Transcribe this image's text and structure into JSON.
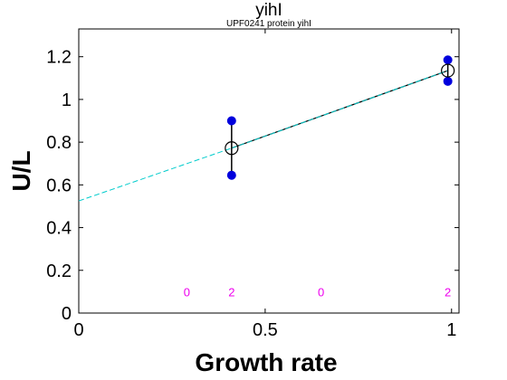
{
  "chart_data": {
    "type": "scatter",
    "title": "yihI",
    "subtitle": "UPF0241 protein yihI",
    "xlabel": "Growth rate",
    "ylabel": "U/L",
    "xlim": [
      0,
      1.02
    ],
    "ylim": [
      0,
      1.33
    ],
    "xticks": [
      0,
      0.5,
      1
    ],
    "xtick_labels": [
      "0",
      "0.5",
      "1"
    ],
    "yticks": [
      0,
      0.2,
      0.4,
      0.6,
      0.8,
      1.0,
      1.2
    ],
    "ytick_labels": [
      "0",
      "0.2",
      "0.4",
      "0.6",
      "0.8",
      "1",
      "1.2"
    ],
    "grid": false,
    "legend": "none",
    "points": {
      "x": [
        0.41,
        0.41,
        0.99,
        0.99
      ],
      "y": [
        0.9,
        0.645,
        1.185,
        1.085
      ],
      "color": "#0000dd"
    },
    "means": {
      "x": [
        0.41,
        0.99
      ],
      "y": [
        0.772,
        1.135
      ],
      "err_low": [
        0.645,
        1.085
      ],
      "err_high": [
        0.9,
        1.185
      ]
    },
    "fit_line": {
      "x": [
        0.41,
        0.99
      ],
      "y": [
        0.772,
        1.135
      ],
      "color": "#000000"
    },
    "extrapolation": {
      "x": [
        0,
        0.41
      ],
      "y": [
        0.525,
        0.772
      ],
      "color": "#00cccc"
    },
    "counts": {
      "x": [
        0.29,
        0.41,
        0.65,
        0.99
      ],
      "y": 0.1,
      "labels": [
        "0",
        "2",
        "0",
        "2"
      ],
      "color": "#ee00ee"
    }
  }
}
